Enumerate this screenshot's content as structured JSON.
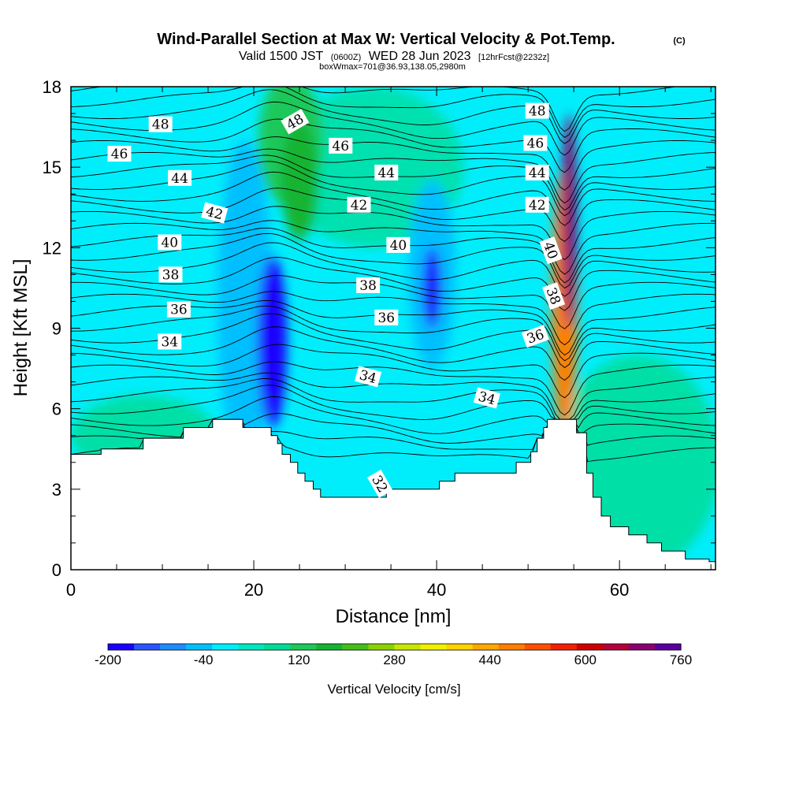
{
  "chart_data": {
    "type": "heatmap",
    "title": "Wind-Parallel Section at Max W: Vertical Velocity & Pot.Temp.",
    "title_mark": "(C)",
    "subtitle_a": "Valid 1500 JST",
    "subtitle_b": "(0600Z)",
    "subtitle_c": "WED 28 Jun 2023",
    "subtitle_d": "[12hrFcst@2232z]",
    "subtitle2": "boxWmax=701@36.93,138.05,2980m",
    "xlabel": "Distance [nm]",
    "ylabel": "Height [Kft MSL]",
    "xlim": [
      0,
      70.5
    ],
    "ylim": [
      0,
      18
    ],
    "x_ticks": [
      "0",
      "20",
      "40",
      "60"
    ],
    "x_tick_values": [
      0,
      20,
      40,
      60
    ],
    "y_ticks": [
      "0",
      "3",
      "6",
      "9",
      "12",
      "15",
      "18"
    ],
    "y_tick_values": [
      0,
      3,
      6,
      9,
      12,
      15,
      18
    ],
    "colorbar": {
      "title": "Vertical Velocity [cm/s]",
      "labels": [
        "-200",
        "-40",
        "120",
        "280",
        "440",
        "600",
        "760"
      ],
      "colors": [
        "#1a00ff",
        "#2a55ff",
        "#1e8cff",
        "#00bfff",
        "#00eefc",
        "#00e8c0",
        "#00dc96",
        "#1ec85a",
        "#14b432",
        "#46be1a",
        "#8ad200",
        "#c8e600",
        "#f0f000",
        "#ffd200",
        "#ffa800",
        "#ff7e00",
        "#ff5000",
        "#f02000",
        "#d00000",
        "#b4003c",
        "#8c0070",
        "#5a00a0"
      ]
    },
    "terrain_kft": [
      [
        0,
        4.3
      ],
      [
        3.3,
        4.3
      ],
      [
        3.3,
        4.5
      ],
      [
        7.9,
        4.5
      ],
      [
        7.9,
        4.9
      ],
      [
        12.3,
        4.9
      ],
      [
        12.3,
        5.3
      ],
      [
        15.5,
        5.3
      ],
      [
        15.5,
        5.6
      ],
      [
        18.8,
        5.6
      ],
      [
        18.8,
        5.3
      ],
      [
        21.9,
        5.3
      ],
      [
        21.9,
        5.0
      ],
      [
        22.6,
        5.0
      ],
      [
        22.6,
        4.7
      ],
      [
        23.1,
        4.7
      ],
      [
        23.1,
        4.3
      ],
      [
        24.0,
        4.3
      ],
      [
        24.0,
        4.0
      ],
      [
        24.8,
        4.0
      ],
      [
        24.8,
        3.6
      ],
      [
        25.6,
        3.6
      ],
      [
        25.6,
        3.3
      ],
      [
        26.5,
        3.3
      ],
      [
        26.5,
        3.0
      ],
      [
        27.3,
        3.0
      ],
      [
        27.3,
        2.7
      ],
      [
        34.5,
        2.7
      ],
      [
        34.5,
        3.0
      ],
      [
        40.3,
        3.0
      ],
      [
        40.3,
        3.3
      ],
      [
        42.0,
        3.3
      ],
      [
        42.0,
        3.6
      ],
      [
        48.7,
        3.6
      ],
      [
        48.7,
        4.0
      ],
      [
        50.3,
        4.0
      ],
      [
        50.3,
        4.4
      ],
      [
        51.0,
        4.4
      ],
      [
        51.0,
        4.9
      ],
      [
        51.7,
        4.9
      ],
      [
        51.7,
        5.3
      ],
      [
        52.1,
        5.3
      ],
      [
        52.1,
        5.6
      ],
      [
        55.3,
        5.6
      ],
      [
        55.3,
        5.1
      ],
      [
        56.4,
        5.1
      ],
      [
        56.4,
        3.6
      ],
      [
        57.1,
        3.6
      ],
      [
        57.1,
        2.7
      ],
      [
        58.0,
        2.7
      ],
      [
        58.0,
        2.0
      ],
      [
        59.0,
        2.0
      ],
      [
        59.0,
        1.6
      ],
      [
        61.0,
        1.6
      ],
      [
        61.0,
        1.3
      ],
      [
        63.0,
        1.3
      ],
      [
        63.0,
        1.0
      ],
      [
        64.6,
        1.0
      ],
      [
        64.6,
        0.7
      ],
      [
        67.2,
        0.7
      ],
      [
        67.2,
        0.4
      ],
      [
        69.8,
        0.4
      ],
      [
        69.8,
        0.3
      ],
      [
        70.5,
        0.3
      ]
    ],
    "w_cells": [
      {
        "x": 19.0,
        "y": 10.0,
        "rx": 3.0,
        "ry": 6.0,
        "w": -80
      },
      {
        "x": 22.0,
        "y": 8.5,
        "rx": 1.6,
        "ry": 3.2,
        "w": -170
      },
      {
        "x": 24.0,
        "y": 16.0,
        "rx": 3.5,
        "ry": 2.5,
        "w": 90
      },
      {
        "x": 25.0,
        "y": 14.5,
        "rx": 2.0,
        "ry": 2.2,
        "w": 150
      },
      {
        "x": 39.5,
        "y": 11.0,
        "rx": 2.6,
        "ry": 3.5,
        "w": -80
      },
      {
        "x": 39.5,
        "y": 10.5,
        "rx": 1.0,
        "ry": 1.5,
        "w": -170
      },
      {
        "x": 54.0,
        "y": 10.0,
        "rx": 1.4,
        "ry": 5.0,
        "w": 400
      },
      {
        "x": 54.5,
        "y": 13.0,
        "rx": 0.8,
        "ry": 4.0,
        "w": 620
      }
    ],
    "theta_contours": [
      {
        "label": "32",
        "lx": 33.8,
        "ly": 3.2,
        "rot": 60
      },
      {
        "label": "34",
        "lx": 10.8,
        "ly": 8.5
      },
      {
        "label": "34",
        "lx": 32.5,
        "ly": 7.2,
        "rot": 15
      },
      {
        "label": "34",
        "lx": 45.5,
        "ly": 6.4,
        "rot": 15
      },
      {
        "label": "36",
        "lx": 11.8,
        "ly": 9.7
      },
      {
        "label": "36",
        "lx": 34.5,
        "ly": 9.4
      },
      {
        "label": "36",
        "lx": 50.8,
        "ly": 8.7,
        "rot": -20
      },
      {
        "label": "38",
        "lx": 10.9,
        "ly": 11.0
      },
      {
        "label": "38",
        "lx": 32.5,
        "ly": 10.6
      },
      {
        "label": "38",
        "lx": 52.8,
        "ly": 10.2,
        "rot": 70
      },
      {
        "label": "40",
        "lx": 10.8,
        "ly": 12.2
      },
      {
        "label": "40",
        "lx": 35.8,
        "ly": 12.1
      },
      {
        "label": "40",
        "lx": 52.5,
        "ly": 11.9,
        "rot": 70
      },
      {
        "label": "42",
        "lx": 15.7,
        "ly": 13.3,
        "rot": 15
      },
      {
        "label": "42",
        "lx": 31.5,
        "ly": 13.6
      },
      {
        "label": "42",
        "lx": 51.0,
        "ly": 13.6
      },
      {
        "label": "44",
        "lx": 11.9,
        "ly": 14.6
      },
      {
        "label": "44",
        "lx": 34.5,
        "ly": 14.8
      },
      {
        "label": "44",
        "lx": 51.0,
        "ly": 14.8
      },
      {
        "label": "46",
        "lx": 5.3,
        "ly": 15.5
      },
      {
        "label": "46",
        "lx": 29.5,
        "ly": 15.8
      },
      {
        "label": "46",
        "lx": 50.8,
        "ly": 15.9
      },
      {
        "label": "48",
        "lx": 9.8,
        "ly": 16.6
      },
      {
        "label": "48",
        "lx": 24.5,
        "ly": 16.7,
        "rot": -30
      },
      {
        "label": "48",
        "lx": 51.0,
        "ly": 17.1
      }
    ]
  }
}
